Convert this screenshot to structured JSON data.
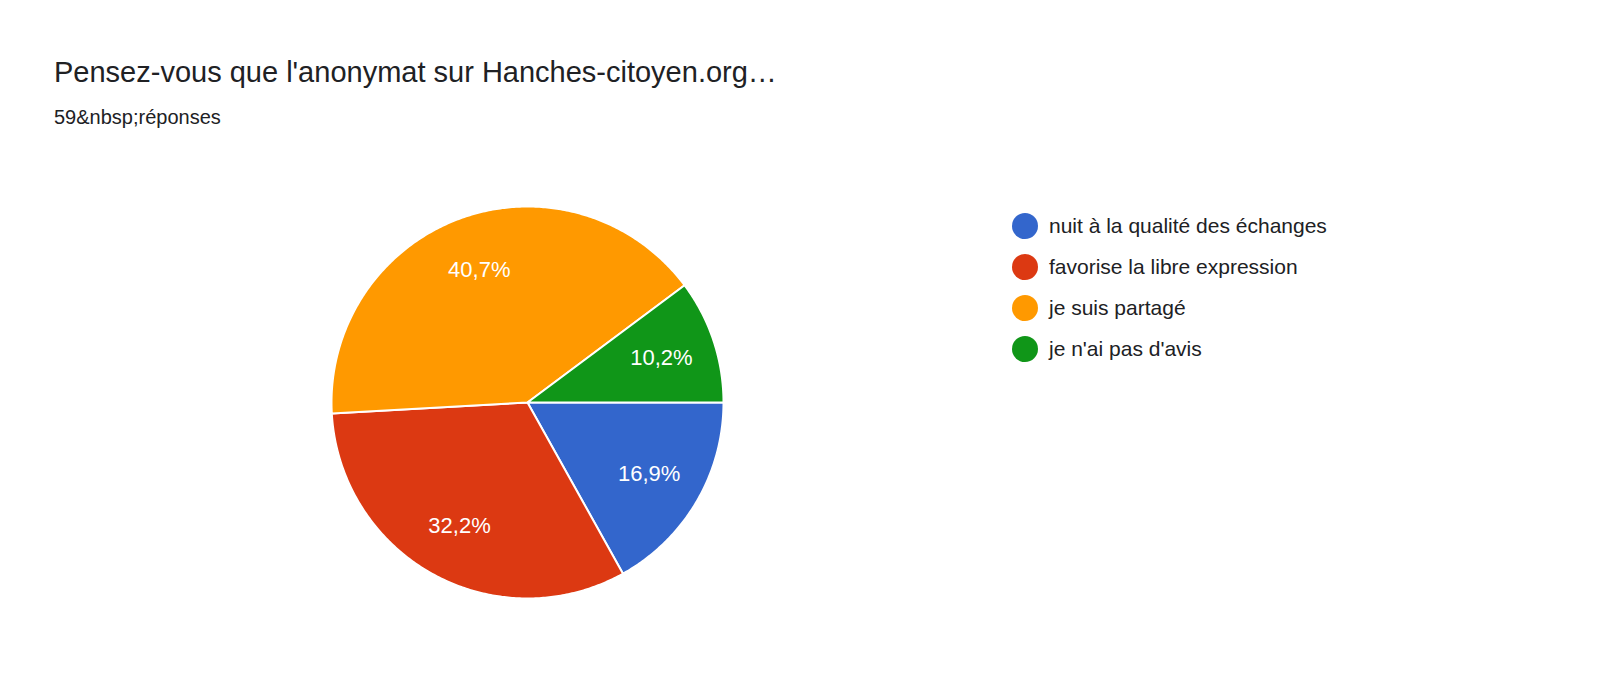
{
  "chart_data": {
    "type": "pie",
    "title": "Pensez-vous que l'anonymat sur Hanches-citoyen.org…",
    "subtitle": "59&nbsp;réponses",
    "categories": [
      "nuit à la qualité des échanges",
      "favorise la libre expression",
      "je suis partagé",
      "je n'ai pas d'avis"
    ],
    "values": [
      16.9,
      32.2,
      40.7,
      10.2
    ],
    "value_labels": [
      "16,9%",
      "32,2%",
      "40,7%",
      "10,2%"
    ],
    "colors": [
      "#3366cc",
      "#dc3912",
      "#ff9900",
      "#109618"
    ],
    "data_labels": true,
    "legend": "right"
  }
}
